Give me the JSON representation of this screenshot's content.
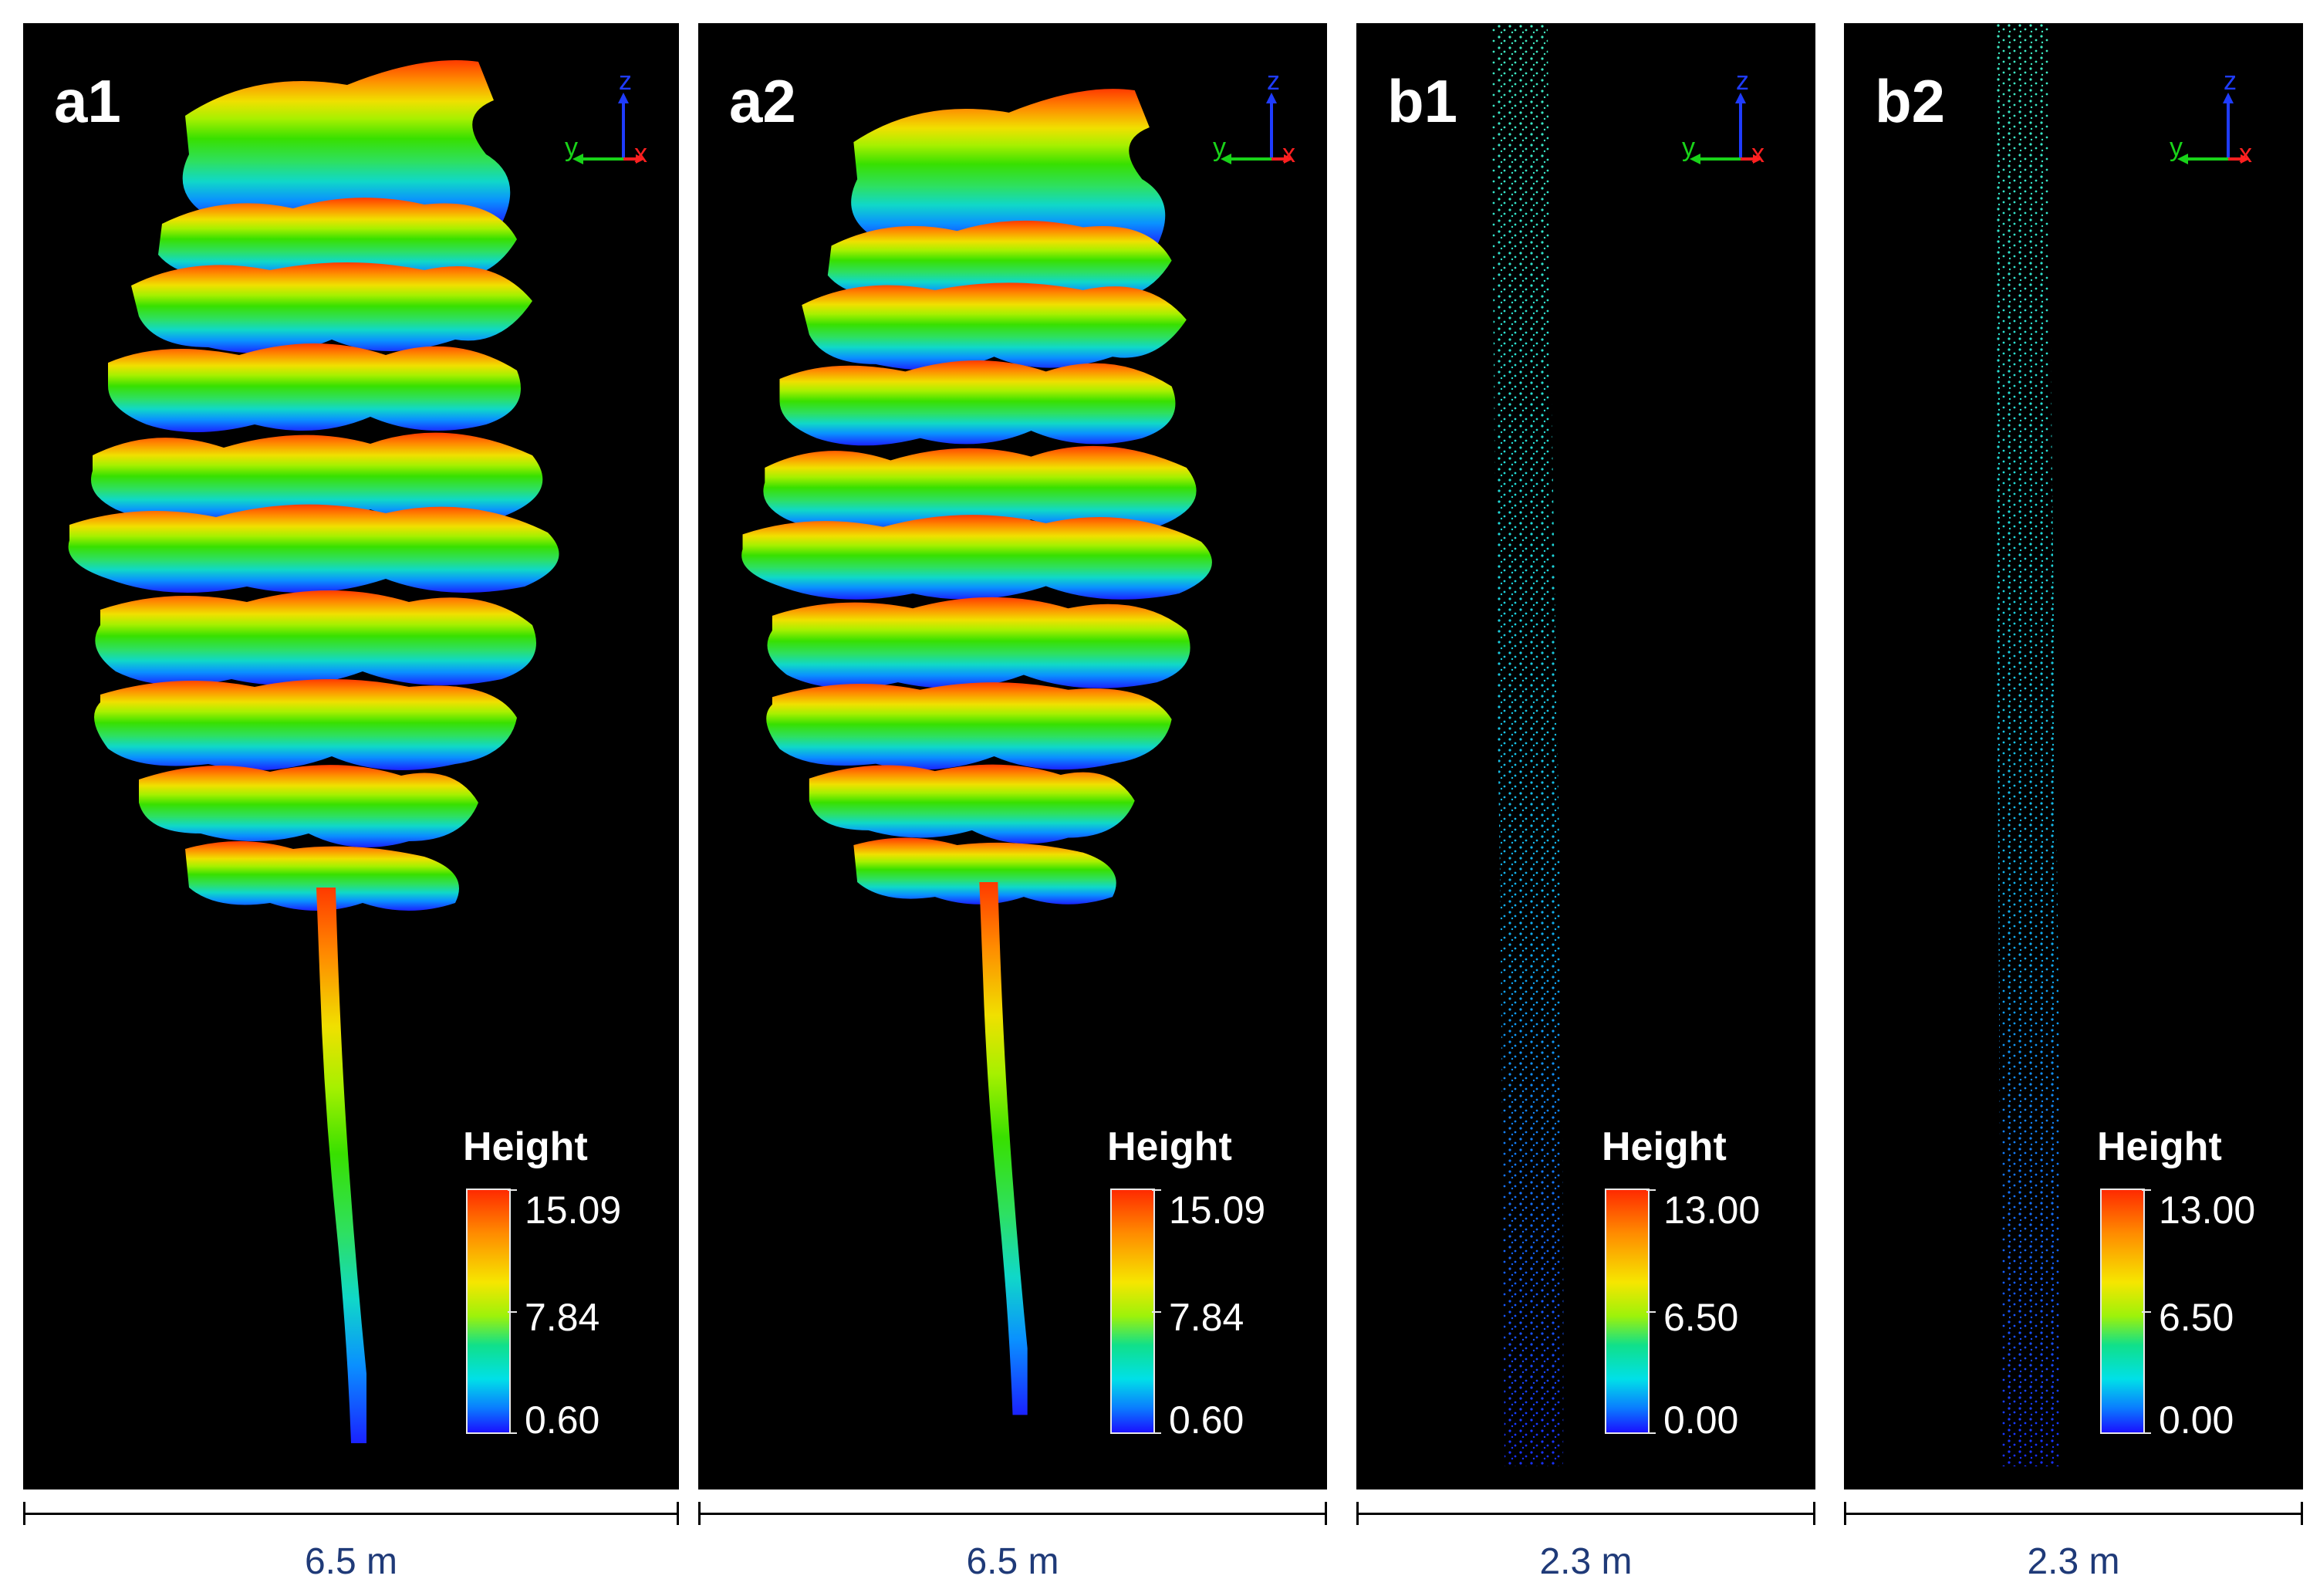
{
  "panels": [
    {
      "label": "a1",
      "legend_title": "Height",
      "legend_values": [
        "15.09",
        "7.84",
        "0.60"
      ],
      "scale": "6.5 m",
      "subject": "tree"
    },
    {
      "label": "a2",
      "legend_title": "Height",
      "legend_values": [
        "15.09",
        "7.84",
        "0.60"
      ],
      "scale": "6.5 m",
      "subject": "tree"
    },
    {
      "label": "b1",
      "legend_title": "Height",
      "legend_values": [
        "13.00",
        "6.50",
        "0.00"
      ],
      "scale": "2.3 m",
      "subject": "column"
    },
    {
      "label": "b2",
      "legend_title": "Height",
      "legend_values": [
        "13.00",
        "6.50",
        "0.00"
      ],
      "scale": "2.3 m",
      "subject": "column"
    }
  ],
  "axes": {
    "z": "z",
    "y": "y",
    "x": "x"
  },
  "colors": {
    "z_axis": "#1f3cff",
    "y_axis": "#19d319",
    "x_axis": "#ff2020",
    "label_blue": "#1f3a78"
  }
}
